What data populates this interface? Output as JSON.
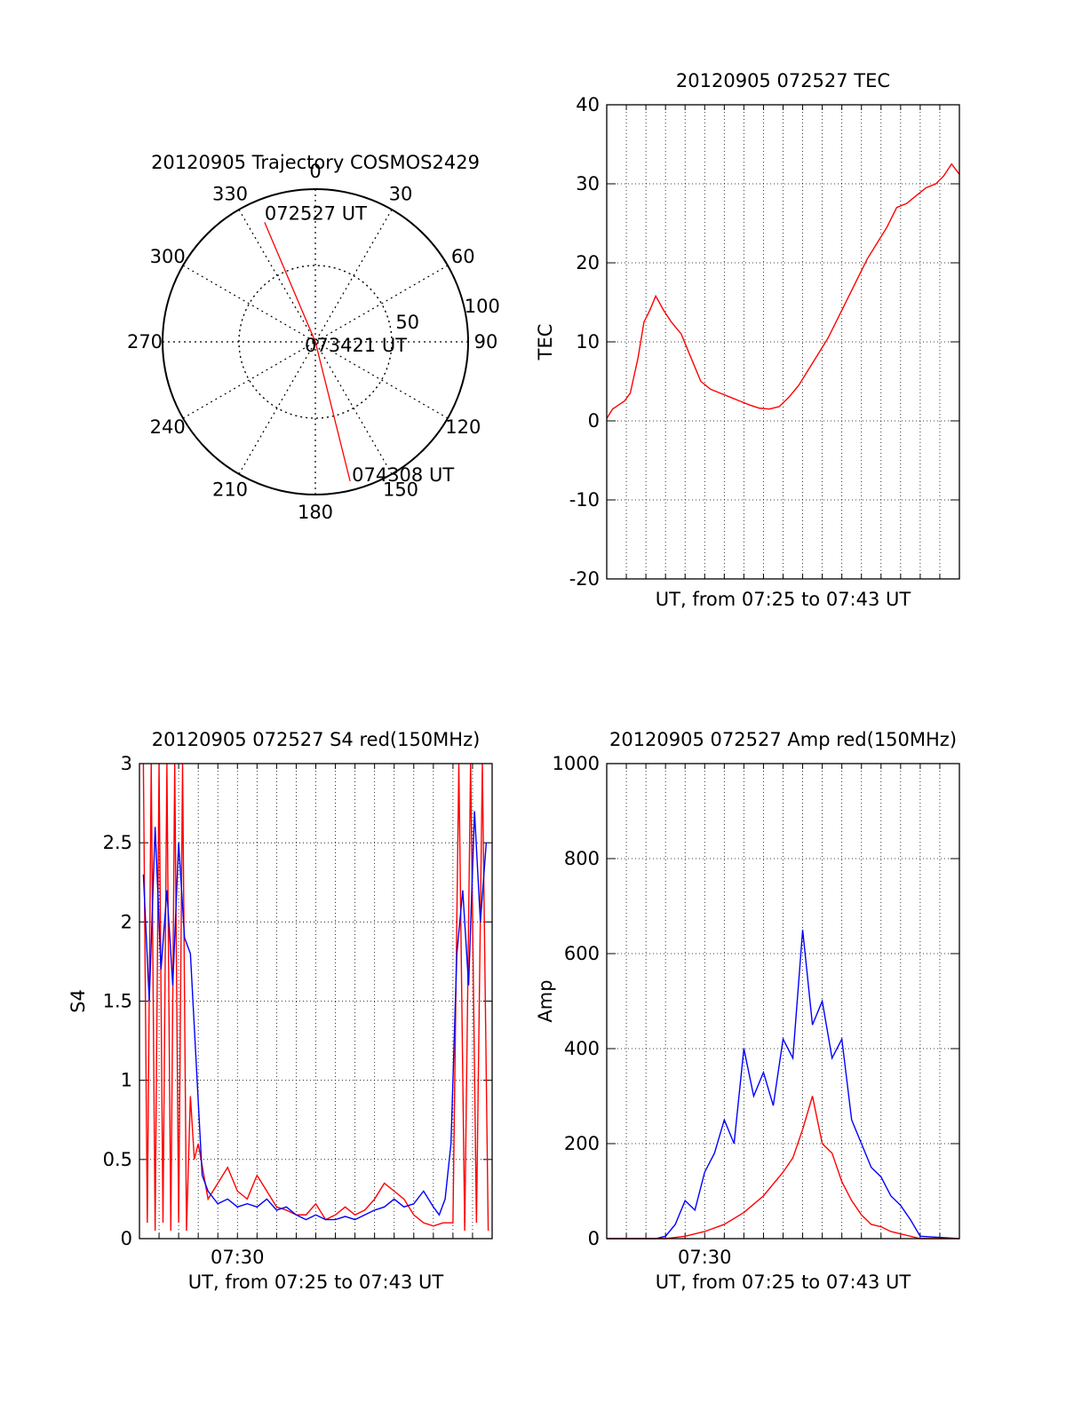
{
  "chart_data": [
    {
      "type": "polar",
      "title": "20120905 Trajectory COSMOS2429",
      "azimuth_ticks": [
        "0",
        "30",
        "60",
        "90",
        "120",
        "150",
        "180",
        "210",
        "240",
        "270",
        "300",
        "330"
      ],
      "radial_ticks": [
        "50",
        "100"
      ],
      "trajectory": {
        "color": "#ff0000",
        "points": [
          {
            "azimuth_deg": 337,
            "zenith_deg": 85
          },
          {
            "azimuth_deg": 0,
            "zenith_deg": 0
          },
          {
            "azimuth_deg": 166,
            "zenith_deg": 94
          }
        ]
      },
      "annotations": [
        {
          "text": "072527 UT",
          "azimuth_deg": 337,
          "zenith_deg": 85
        },
        {
          "text": "073421 UT",
          "azimuth_deg": 0,
          "zenith_deg": 0
        },
        {
          "text": "074308 UT",
          "azimuth_deg": 166,
          "zenith_deg": 94
        }
      ]
    },
    {
      "type": "line",
      "title": "20120905 072527 TEC",
      "xlabel": "UT, from 07:25 to 07:43 UT",
      "ylabel": "TEC",
      "xlim": [
        0,
        18
      ],
      "ylim": [
        -20,
        40
      ],
      "yticks": [
        "-20",
        "-10",
        "0",
        "10",
        "20",
        "30",
        "40"
      ],
      "grid": true,
      "series": [
        {
          "color": "#ff0000",
          "x": [
            0,
            0.3,
            0.6,
            0.9,
            1.2,
            1.6,
            1.9,
            2.2,
            2.5,
            2.9,
            3.3,
            3.8,
            4.3,
            4.8,
            5.3,
            5.8,
            6.3,
            6.8,
            7.3,
            7.8,
            8.3,
            8.8,
            9.3,
            9.8,
            10.3,
            10.8,
            11.3,
            11.8,
            12.3,
            12.8,
            13.3,
            13.8,
            14.3,
            14.8,
            15.3,
            15.8,
            16.3,
            16.8,
            17.2,
            17.6,
            18
          ],
          "y": [
            0.3,
            1.5,
            2.0,
            2.5,
            3.5,
            8.0,
            12.5,
            14.0,
            15.8,
            14.0,
            12.5,
            11.0,
            8.0,
            5.0,
            4.0,
            3.5,
            3.0,
            2.5,
            2.0,
            1.6,
            1.5,
            1.8,
            3.0,
            4.5,
            6.5,
            8.5,
            10.5,
            13.0,
            15.5,
            18.0,
            20.5,
            22.5,
            24.5,
            27.0,
            27.5,
            28.5,
            29.5,
            30.0,
            31.0,
            32.5,
            31.2
          ]
        }
      ]
    },
    {
      "type": "line",
      "title": "20120905 072527 S4 red(150MHz)",
      "xlabel": "UT, from 07:25 to 07:43 UT",
      "xtick_labels": [
        {
          "x": 5,
          "label": "07:30"
        }
      ],
      "ylabel": "S4",
      "xlim": [
        0,
        18
      ],
      "ylim": [
        0,
        3
      ],
      "yticks": [
        "0",
        "0.5",
        "1",
        "1.5",
        "2",
        "2.5",
        "3"
      ],
      "grid": true,
      "series": [
        {
          "color": "#ff0000",
          "x": [
            0.2,
            0.4,
            0.6,
            0.8,
            1.0,
            1.2,
            1.4,
            1.6,
            1.8,
            2.0,
            2.2,
            2.4,
            2.6,
            2.8,
            3.0,
            3.5,
            4.0,
            4.5,
            5.0,
            5.5,
            6.0,
            6.5,
            7.0,
            7.5,
            8.0,
            8.5,
            9.0,
            9.5,
            10.0,
            10.5,
            11.0,
            11.5,
            12.0,
            12.5,
            13.0,
            13.5,
            14.0,
            14.5,
            15.0,
            15.5,
            16.0,
            16.3,
            16.6,
            16.9,
            17.2,
            17.5,
            17.8
          ],
          "y": [
            3,
            0.1,
            3,
            0.05,
            3,
            0.1,
            3,
            0.05,
            3,
            0.1,
            3,
            0.05,
            0.9,
            0.5,
            0.6,
            0.25,
            0.35,
            0.45,
            0.3,
            0.25,
            0.4,
            0.3,
            0.2,
            0.18,
            0.15,
            0.15,
            0.22,
            0.12,
            0.15,
            0.2,
            0.15,
            0.18,
            0.25,
            0.35,
            0.3,
            0.25,
            0.15,
            0.1,
            0.08,
            0.1,
            0.1,
            3,
            0.05,
            3,
            0.1,
            3,
            0.05
          ]
        },
        {
          "color": "#0000ff",
          "x": [
            0.2,
            0.5,
            0.8,
            1.1,
            1.4,
            1.7,
            2.0,
            2.3,
            2.6,
            2.9,
            3.2,
            3.5,
            4.0,
            4.5,
            5.0,
            5.5,
            6.0,
            6.5,
            7.0,
            7.5,
            8.0,
            8.5,
            9.0,
            9.5,
            10.0,
            10.5,
            11.0,
            11.5,
            12.0,
            12.5,
            13.0,
            13.5,
            14.0,
            14.5,
            15.0,
            15.3,
            15.6,
            15.9,
            16.2,
            16.5,
            16.8,
            17.1,
            17.4,
            17.7
          ],
          "y": [
            2.3,
            1.5,
            2.6,
            1.7,
            2.2,
            1.6,
            2.5,
            1.9,
            1.8,
            1.1,
            0.4,
            0.3,
            0.22,
            0.25,
            0.2,
            0.22,
            0.2,
            0.25,
            0.18,
            0.2,
            0.15,
            0.12,
            0.15,
            0.12,
            0.12,
            0.14,
            0.12,
            0.15,
            0.18,
            0.2,
            0.25,
            0.2,
            0.22,
            0.3,
            0.2,
            0.15,
            0.25,
            0.6,
            1.8,
            2.2,
            1.6,
            2.7,
            2.0,
            2.5
          ]
        }
      ]
    },
    {
      "type": "line",
      "title": "20120905 072527 Amp red(150MHz)",
      "xlabel": "UT, from 07:25 to 07:43 UT",
      "xtick_labels": [
        {
          "x": 5,
          "label": "07:30"
        }
      ],
      "ylabel": "Amp",
      "xlim": [
        0,
        18
      ],
      "ylim": [
        0,
        1000
      ],
      "yticks": [
        "0",
        "200",
        "400",
        "600",
        "800",
        "1000"
      ],
      "grid": true,
      "series": [
        {
          "color": "#0000ff",
          "x": [
            0,
            2.5,
            3.0,
            3.5,
            4.0,
            4.5,
            5.0,
            5.5,
            6.0,
            6.5,
            7.0,
            7.5,
            8.0,
            8.5,
            9.0,
            9.5,
            10.0,
            10.5,
            11.0,
            11.5,
            12.0,
            12.5,
            13.0,
            13.5,
            14.0,
            14.5,
            15.0,
            15.5,
            16.0,
            18.0
          ],
          "y": [
            0,
            0,
            5,
            30,
            80,
            60,
            140,
            180,
            250,
            200,
            400,
            300,
            350,
            280,
            420,
            380,
            650,
            450,
            500,
            380,
            420,
            250,
            200,
            150,
            130,
            90,
            70,
            40,
            5,
            0
          ]
        },
        {
          "color": "#ff0000",
          "x": [
            0,
            3.0,
            4.0,
            5.0,
            6.0,
            7.0,
            8.0,
            9.0,
            9.5,
            10.0,
            10.5,
            11.0,
            11.5,
            12.0,
            12.5,
            13.0,
            13.5,
            14.0,
            14.5,
            15.0,
            15.5,
            16.0,
            18.0
          ],
          "y": [
            0,
            0,
            5,
            15,
            30,
            55,
            90,
            140,
            170,
            230,
            300,
            200,
            180,
            120,
            80,
            50,
            30,
            25,
            15,
            10,
            5,
            0,
            0
          ]
        }
      ]
    }
  ]
}
